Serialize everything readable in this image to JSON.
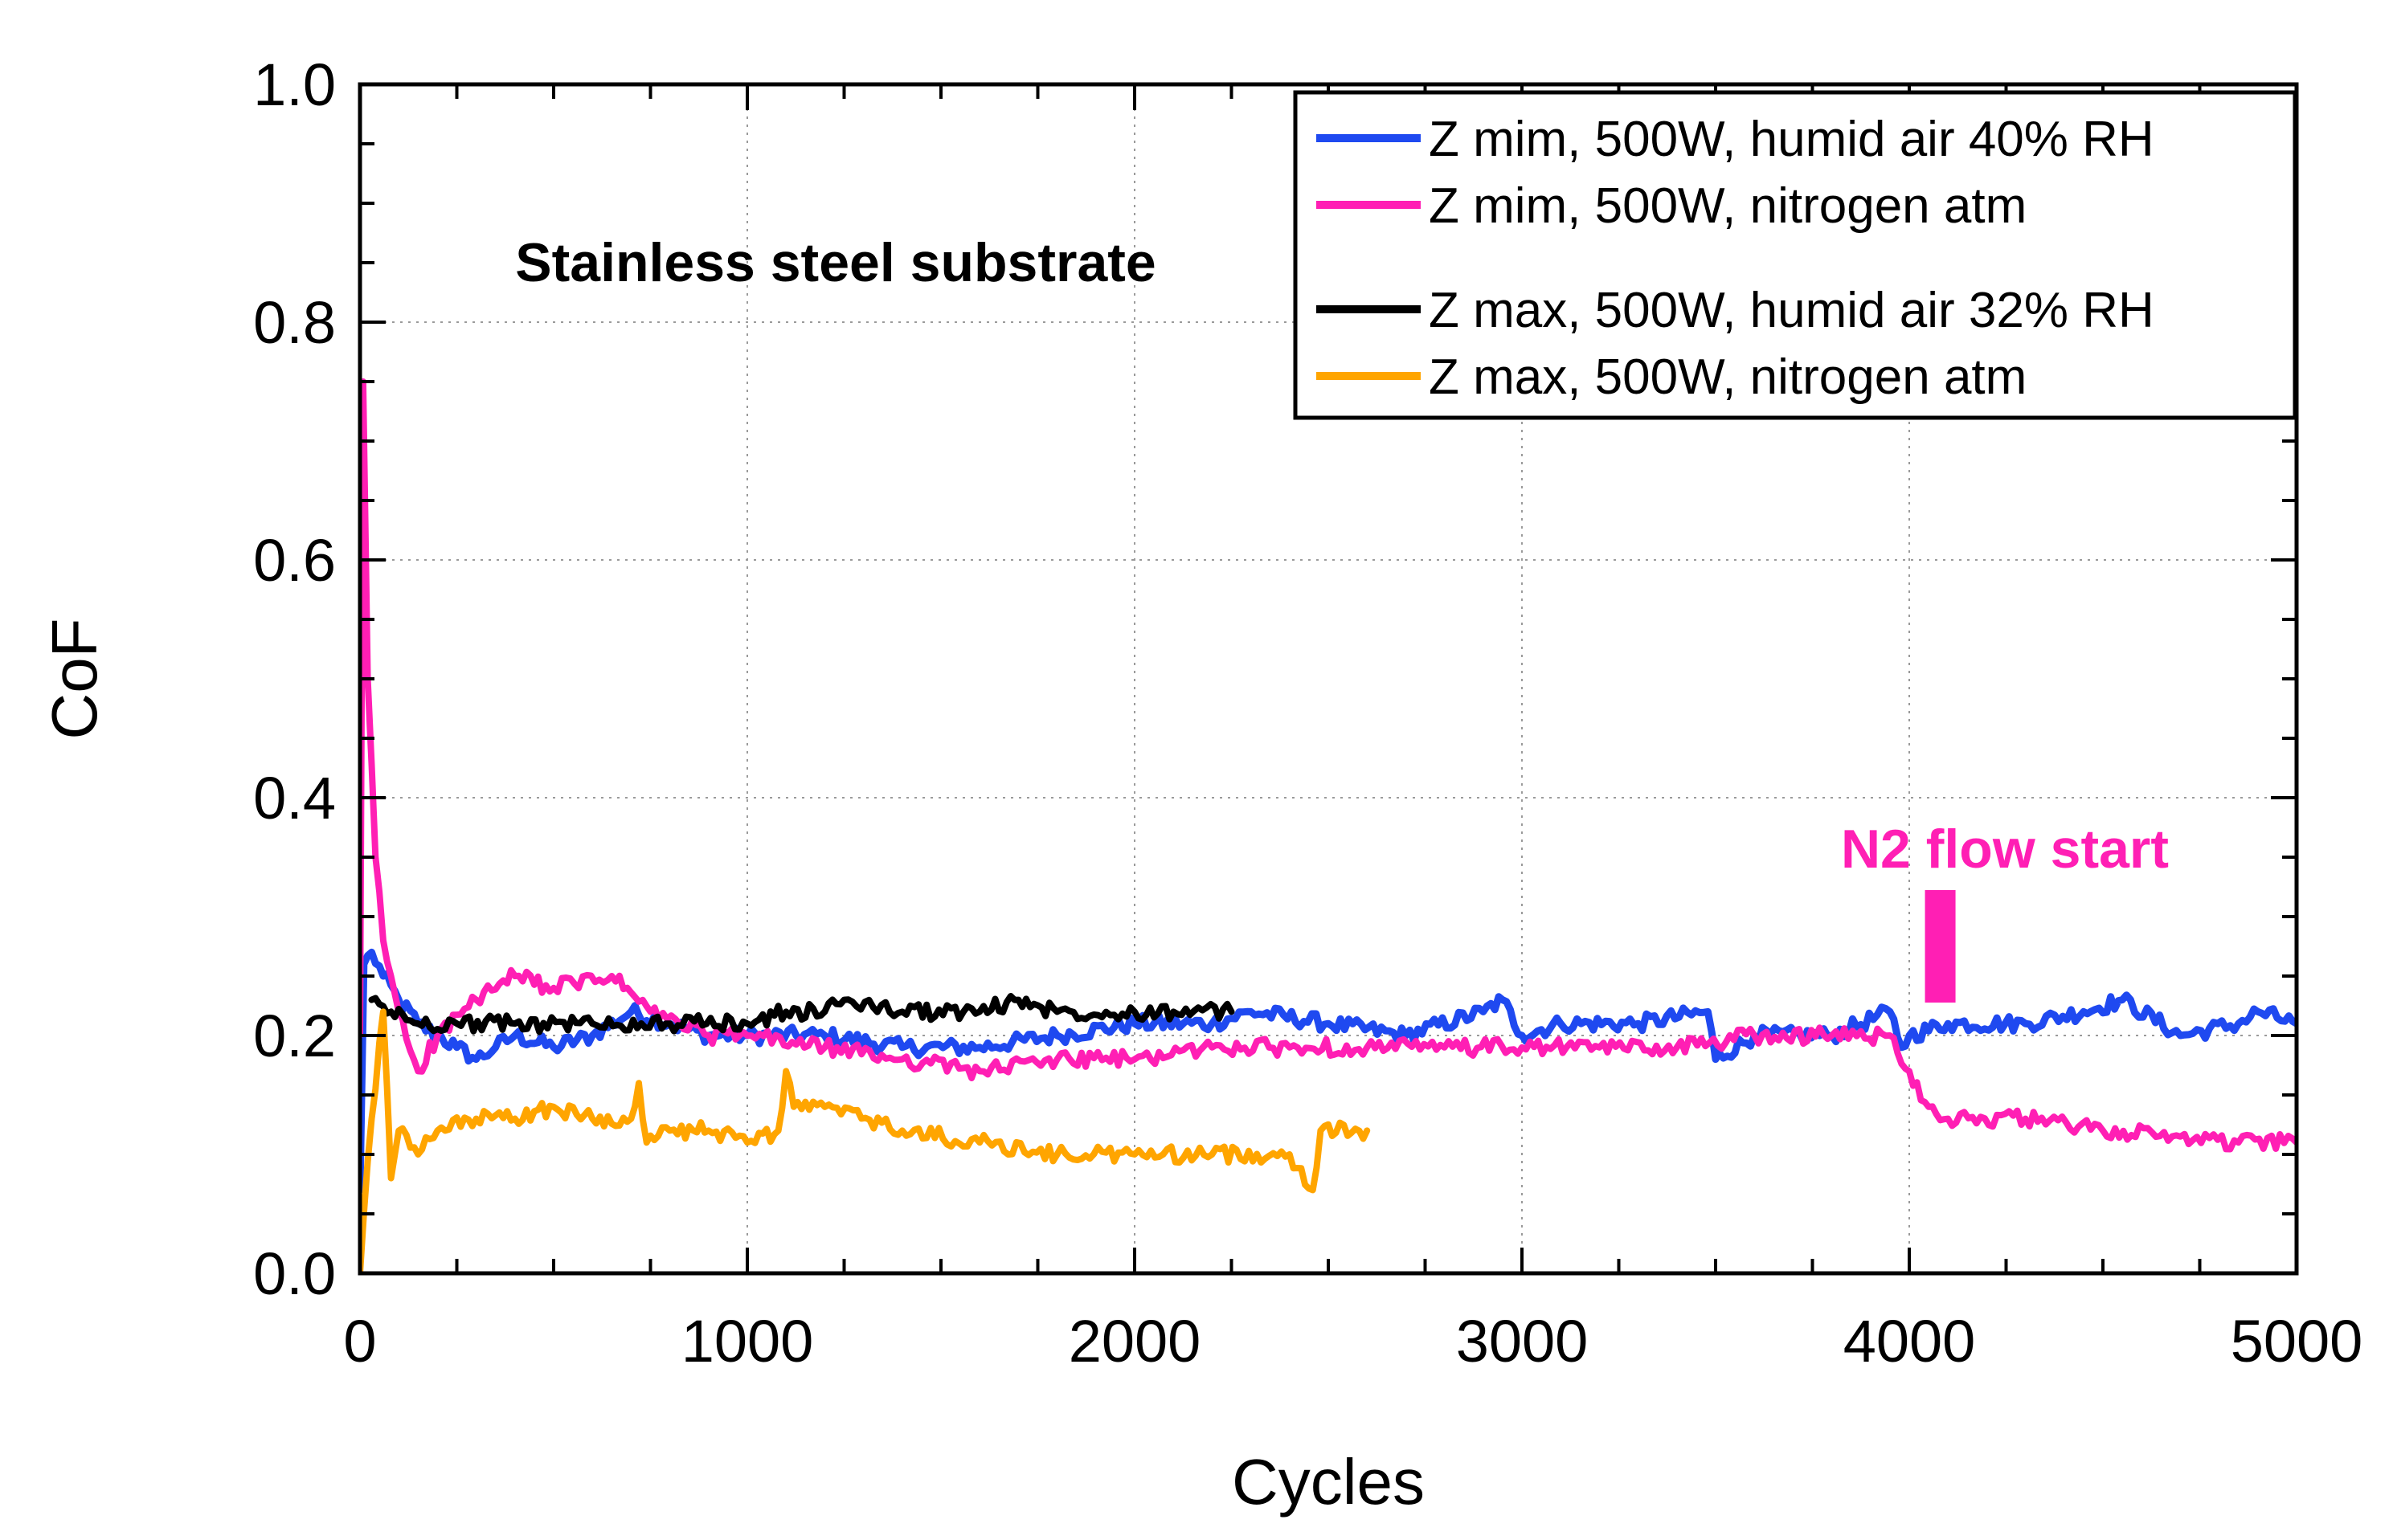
{
  "chart_data": {
    "type": "line",
    "title": "",
    "xlabel": "Cycles",
    "ylabel": "CoF",
    "xlim": [
      0,
      5000
    ],
    "ylim": [
      0,
      1.0
    ],
    "x_ticks": [
      "0",
      "1000",
      "2000",
      "3000",
      "4000",
      "5000"
    ],
    "y_ticks": [
      "0.0",
      "0.2",
      "0.4",
      "0.6",
      "0.8",
      "1.0"
    ],
    "grid": true,
    "legend_position": "top-right",
    "annotations": {
      "substrate": "Stainless steel substrate",
      "n2_flow": {
        "text": "N2 flow start",
        "x": 4080,
        "color": "#ff1fb4"
      }
    },
    "series": [
      {
        "name": "Z mim, 500W, humid air 40% RH",
        "color": "#1f49f0",
        "points": [
          [
            0,
            0.07
          ],
          [
            10,
            0.26
          ],
          [
            30,
            0.27
          ],
          [
            60,
            0.25
          ],
          [
            100,
            0.23
          ],
          [
            150,
            0.21
          ],
          [
            200,
            0.2
          ],
          [
            250,
            0.19
          ],
          [
            300,
            0.18
          ],
          [
            350,
            0.19
          ],
          [
            400,
            0.2
          ],
          [
            500,
            0.19
          ],
          [
            600,
            0.2
          ],
          [
            700,
            0.22
          ],
          [
            800,
            0.21
          ],
          [
            900,
            0.2
          ],
          [
            1000,
            0.2
          ],
          [
            1200,
            0.2
          ],
          [
            1400,
            0.19
          ],
          [
            1600,
            0.19
          ],
          [
            1800,
            0.2
          ],
          [
            2000,
            0.21
          ],
          [
            2200,
            0.21
          ],
          [
            2300,
            0.22
          ],
          [
            2500,
            0.21
          ],
          [
            2700,
            0.2
          ],
          [
            2900,
            0.22
          ],
          [
            2950,
            0.23
          ],
          [
            3000,
            0.2
          ],
          [
            3100,
            0.21
          ],
          [
            3300,
            0.21
          ],
          [
            3480,
            0.22
          ],
          [
            3500,
            0.18
          ],
          [
            3600,
            0.2
          ],
          [
            3800,
            0.2
          ],
          [
            3950,
            0.22
          ],
          [
            3980,
            0.19
          ],
          [
            4000,
            0.2
          ],
          [
            4100,
            0.21
          ],
          [
            4300,
            0.21
          ],
          [
            4450,
            0.22
          ],
          [
            4550,
            0.23
          ],
          [
            4700,
            0.2
          ],
          [
            4850,
            0.21
          ],
          [
            4900,
            0.22
          ],
          [
            5000,
            0.21
          ]
        ]
      },
      {
        "name": "Z mim, 500W, nitrogen atm",
        "color": "#ff1fb4",
        "points": [
          [
            0,
            0.2
          ],
          [
            8,
            0.75
          ],
          [
            20,
            0.5
          ],
          [
            40,
            0.35
          ],
          [
            60,
            0.28
          ],
          [
            100,
            0.22
          ],
          [
            150,
            0.17
          ],
          [
            200,
            0.2
          ],
          [
            300,
            0.23
          ],
          [
            400,
            0.25
          ],
          [
            500,
            0.24
          ],
          [
            650,
            0.25
          ],
          [
            750,
            0.22
          ],
          [
            900,
            0.2
          ],
          [
            1000,
            0.2
          ],
          [
            1200,
            0.19
          ],
          [
            1400,
            0.18
          ],
          [
            1600,
            0.17
          ],
          [
            1800,
            0.18
          ],
          [
            2000,
            0.18
          ],
          [
            2200,
            0.19
          ],
          [
            2400,
            0.19
          ],
          [
            2600,
            0.19
          ],
          [
            2800,
            0.19
          ],
          [
            3000,
            0.19
          ],
          [
            3200,
            0.19
          ],
          [
            3400,
            0.19
          ],
          [
            3600,
            0.2
          ],
          [
            3800,
            0.2
          ],
          [
            3950,
            0.2
          ],
          [
            4000,
            0.17
          ],
          [
            4050,
            0.14
          ],
          [
            4100,
            0.13
          ],
          [
            4300,
            0.13
          ],
          [
            4500,
            0.12
          ],
          [
            4700,
            0.115
          ],
          [
            4850,
            0.11
          ],
          [
            5000,
            0.11
          ]
        ]
      },
      {
        "name": "Z max, 500W, humid air 32% RH",
        "color": "#000000",
        "points": [
          [
            30,
            0.23
          ],
          [
            80,
            0.22
          ],
          [
            150,
            0.21
          ],
          [
            250,
            0.21
          ],
          [
            400,
            0.21
          ],
          [
            600,
            0.21
          ],
          [
            800,
            0.21
          ],
          [
            1000,
            0.21
          ],
          [
            1100,
            0.22
          ],
          [
            1200,
            0.22
          ],
          [
            1250,
            0.23
          ],
          [
            1400,
            0.22
          ],
          [
            1600,
            0.22
          ],
          [
            1700,
            0.23
          ],
          [
            1800,
            0.22
          ],
          [
            2000,
            0.22
          ],
          [
            2100,
            0.22
          ],
          [
            2250,
            0.22
          ]
        ]
      },
      {
        "name": "Z max, 500W, nitrogen atm",
        "color": "#ffa500",
        "points": [
          [
            0,
            0.0
          ],
          [
            10,
            0.05
          ],
          [
            30,
            0.13
          ],
          [
            60,
            0.22
          ],
          [
            80,
            0.08
          ],
          [
            100,
            0.12
          ],
          [
            150,
            0.1
          ],
          [
            200,
            0.12
          ],
          [
            300,
            0.13
          ],
          [
            400,
            0.13
          ],
          [
            500,
            0.14
          ],
          [
            600,
            0.13
          ],
          [
            700,
            0.13
          ],
          [
            720,
            0.16
          ],
          [
            740,
            0.11
          ],
          [
            800,
            0.12
          ],
          [
            900,
            0.12
          ],
          [
            1000,
            0.11
          ],
          [
            1080,
            0.12
          ],
          [
            1100,
            0.17
          ],
          [
            1120,
            0.14
          ],
          [
            1200,
            0.14
          ],
          [
            1400,
            0.12
          ],
          [
            1600,
            0.11
          ],
          [
            1800,
            0.1
          ],
          [
            2000,
            0.1
          ],
          [
            2200,
            0.1
          ],
          [
            2400,
            0.1
          ],
          [
            2460,
            0.07
          ],
          [
            2480,
            0.12
          ],
          [
            2600,
            0.12
          ]
        ]
      }
    ]
  }
}
